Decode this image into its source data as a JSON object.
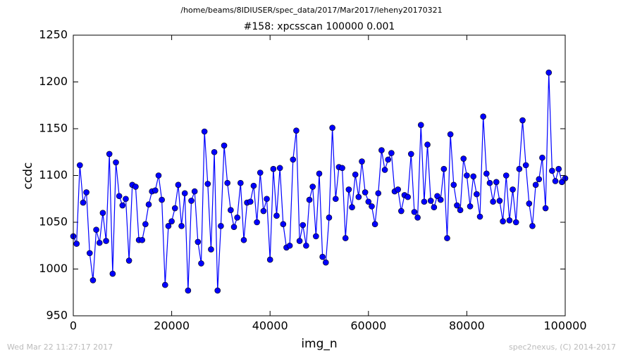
{
  "chart_data": {
    "type": "line",
    "title": "/home/beams/8IDIUSER/spec_data/2017/Mar2017/leheny20170321",
    "subtitle": "#158: xpcsscan 100000 0.001",
    "x_label": "img_n",
    "y_label": "ccdc",
    "footer_left": "Wed Mar 22 11:27:17 2017",
    "footer_right": "spec2nexus, (C) 2014-2017",
    "color": "#0000ff",
    "xlim": [
      0,
      100000
    ],
    "ylim": [
      950,
      1250
    ],
    "xticks": [
      0,
      20000,
      40000,
      60000,
      80000,
      100000
    ],
    "yticks": [
      950,
      1000,
      1050,
      1100,
      1150,
      1200,
      1250
    ],
    "x": [
      0,
      667,
      1333,
      2000,
      2667,
      3333,
      4000,
      4667,
      5333,
      6000,
      6667,
      7333,
      8000,
      8667,
      9333,
      10000,
      10667,
      11333,
      12000,
      12667,
      13333,
      14000,
      14667,
      15333,
      16000,
      16667,
      17333,
      18000,
      18667,
      19333,
      20000,
      20667,
      21333,
      22000,
      22667,
      23333,
      24000,
      24667,
      25333,
      26000,
      26667,
      27333,
      28000,
      28667,
      29333,
      30000,
      30667,
      31333,
      32000,
      32667,
      33333,
      34000,
      34667,
      35333,
      36000,
      36667,
      37333,
      38000,
      38667,
      39333,
      40000,
      40667,
      41333,
      42000,
      42667,
      43333,
      44000,
      44667,
      45333,
      46000,
      46667,
      47333,
      48000,
      48667,
      49333,
      50000,
      50667,
      51333,
      52000,
      52667,
      53333,
      54000,
      54667,
      55333,
      56000,
      56667,
      57333,
      58000,
      58667,
      59333,
      60000,
      60667,
      61333,
      62000,
      62667,
      63333,
      64000,
      64667,
      65333,
      66000,
      66667,
      67333,
      68000,
      68667,
      69333,
      70000,
      70667,
      71333,
      72000,
      72667,
      73333,
      74000,
      74667,
      75333,
      76000,
      76667,
      77333,
      78000,
      78667,
      79333,
      80000,
      80667,
      81333,
      82000,
      82667,
      83333,
      84000,
      84667,
      85333,
      86000,
      86667,
      87333,
      88000,
      88667,
      89333,
      90000,
      90667,
      91333,
      92000,
      92667,
      93333,
      94000,
      94667,
      95333,
      96000,
      96667,
      97333,
      98000,
      98667,
      99333,
      100000
    ],
    "values": [
      1035,
      1027,
      1111,
      1071,
      1082,
      1017,
      988,
      1042,
      1028,
      1060,
      1030,
      1123,
      995,
      1114,
      1078,
      1068,
      1075,
      1009,
      1090,
      1088,
      1031,
      1031,
      1048,
      1069,
      1083,
      1084,
      1100,
      1074,
      983,
      1046,
      1051,
      1065,
      1090,
      1046,
      1081,
      977,
      1073,
      1083,
      1029,
      1006,
      1147,
      1091,
      1021,
      1125,
      977,
      1046,
      1132,
      1092,
      1063,
      1045,
      1055,
      1092,
      1031,
      1071,
      1072,
      1089,
      1050,
      1103,
      1062,
      1075,
      1010,
      1107,
      1057,
      1108,
      1048,
      1023,
      1025,
      1117,
      1148,
      1030,
      1047,
      1025,
      1074,
      1088,
      1035,
      1102,
      1013,
      1007,
      1055,
      1151,
      1075,
      1109,
      1108,
      1033,
      1085,
      1066,
      1101,
      1077,
      1115,
      1082,
      1072,
      1067,
      1048,
      1081,
      1127,
      1106,
      1117,
      1124,
      1083,
      1085,
      1062,
      1079,
      1077,
      1123,
      1061,
      1055,
      1154,
      1072,
      1133,
      1073,
      1066,
      1078,
      1074,
      1107,
      1033,
      1144,
      1090,
      1068,
      1063,
      1118,
      1100,
      1067,
      1099,
      1080,
      1056,
      1163,
      1102,
      1092,
      1072,
      1093,
      1073,
      1051,
      1100,
      1052,
      1085,
      1050,
      1107,
      1159,
      1111,
      1070,
      1046,
      1090,
      1096,
      1119,
      1065,
      1210,
      1105,
      1094,
      1107,
      1093,
      1097
    ]
  }
}
